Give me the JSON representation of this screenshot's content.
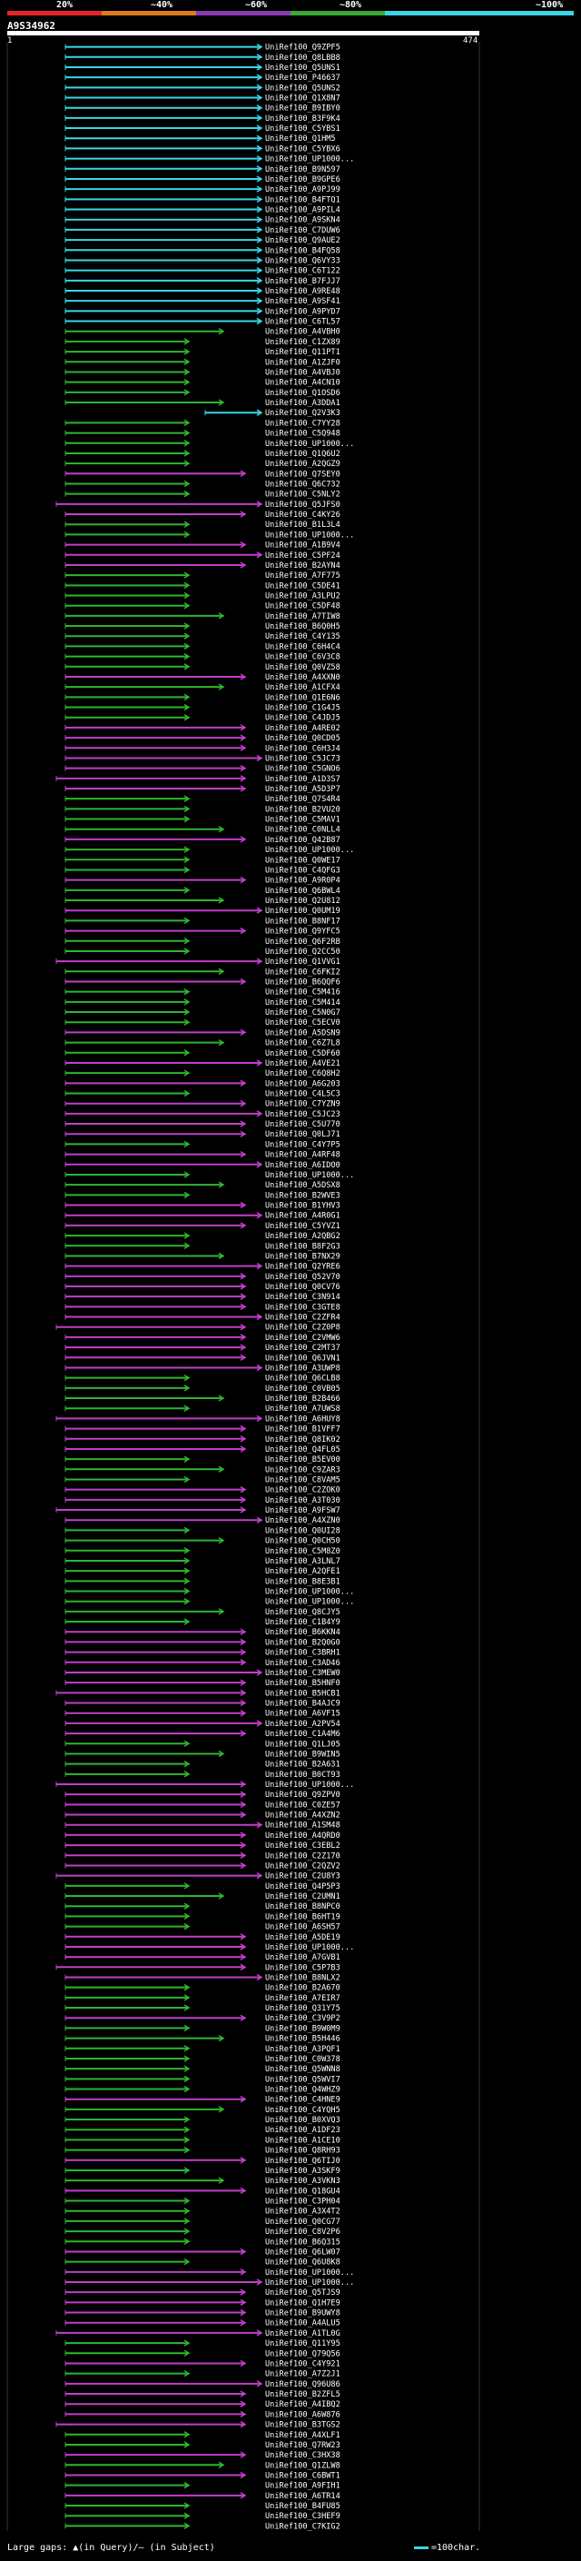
{
  "scale": {
    "labels": [
      "20%",
      "~40%",
      "~60%",
      "~80%",
      "~100%"
    ],
    "colors": [
      "#e8222a",
      "#e07a1a",
      "#8a3ab0",
      "#3aa832",
      "#3ad6e6"
    ]
  },
  "query": {
    "id": "A9S34962",
    "start": "1",
    "end": "474"
  },
  "hit_colors": {
    "cyan": "#3ad6e6",
    "green": "#2fb52f",
    "magenta": "#c040c8"
  },
  "hit_label_prefix": "UniRef100_",
  "hits": [
    {
      "id": "Q9ZPF5",
      "c": "cyan"
    },
    {
      "id": "Q8LBB8",
      "c": "cyan"
    },
    {
      "id": "Q5UNS1",
      "c": "cyan"
    },
    {
      "id": "P46637",
      "c": "cyan"
    },
    {
      "id": "Q5UNS2",
      "c": "cyan"
    },
    {
      "id": "Q1X8N7",
      "c": "cyan"
    },
    {
      "id": "B9IBY0",
      "c": "cyan"
    },
    {
      "id": "B3F9K4",
      "c": "cyan"
    },
    {
      "id": "C5YBS1",
      "c": "cyan"
    },
    {
      "id": "Q1HM5",
      "c": "cyan"
    },
    {
      "id": "C5YBX6",
      "c": "cyan"
    },
    {
      "id": "UP1000...",
      "c": "cyan"
    },
    {
      "id": "B9N597",
      "c": "cyan"
    },
    {
      "id": "B9GPE6",
      "c": "cyan"
    },
    {
      "id": "A9PJ99",
      "c": "cyan"
    },
    {
      "id": "B4FTQ1",
      "c": "cyan"
    },
    {
      "id": "A9PIL4",
      "c": "cyan"
    },
    {
      "id": "A9SKN4",
      "c": "cyan"
    },
    {
      "id": "C7DUW6",
      "c": "cyan"
    },
    {
      "id": "Q9AUE2",
      "c": "cyan"
    },
    {
      "id": "B4FQ58",
      "c": "cyan"
    },
    {
      "id": "Q6VY33",
      "c": "cyan"
    },
    {
      "id": "C6T122",
      "c": "cyan"
    },
    {
      "id": "B7FJJ7",
      "c": "cyan"
    },
    {
      "id": "A9RE48",
      "c": "cyan"
    },
    {
      "id": "A9SF41",
      "c": "cyan"
    },
    {
      "id": "A9PYD7",
      "c": "cyan"
    },
    {
      "id": "C6TL57",
      "c": "cyan"
    },
    {
      "id": "A4VBH0",
      "c": "green"
    },
    {
      "id": "C1ZX89",
      "c": "green"
    },
    {
      "id": "Q11PT1",
      "c": "green"
    },
    {
      "id": "A1ZJF0",
      "c": "green"
    },
    {
      "id": "A4VBJ0",
      "c": "green"
    },
    {
      "id": "A4CN10",
      "c": "green"
    },
    {
      "id": "Q1OSD6",
      "c": "green"
    },
    {
      "id": "A3DDA1",
      "c": "green"
    },
    {
      "id": "Q2V3K3",
      "c": "cyan"
    },
    {
      "id": "C7YY28",
      "c": "green"
    },
    {
      "id": "C5Q948",
      "c": "green"
    },
    {
      "id": "UP1000...",
      "c": "green"
    },
    {
      "id": "Q1Q6U2",
      "c": "green"
    },
    {
      "id": "A2QGZ9",
      "c": "green"
    },
    {
      "id": "Q7SEY0",
      "c": "magenta"
    },
    {
      "id": "Q6C732",
      "c": "green"
    },
    {
      "id": "C5NLY2",
      "c": "green"
    },
    {
      "id": "Q5JFS0",
      "c": "magenta"
    },
    {
      "id": "C4KY26",
      "c": "magenta"
    },
    {
      "id": "B1L3L4",
      "c": "green"
    },
    {
      "id": "UP1000...",
      "c": "green"
    },
    {
      "id": "A1B9V4",
      "c": "magenta"
    },
    {
      "id": "C5PF24",
      "c": "magenta"
    },
    {
      "id": "B2AYN4",
      "c": "magenta"
    },
    {
      "id": "A7F775",
      "c": "green"
    },
    {
      "id": "C5DE41",
      "c": "green"
    },
    {
      "id": "A3LPU2",
      "c": "green"
    },
    {
      "id": "C5DF48",
      "c": "green"
    },
    {
      "id": "A7TIW8",
      "c": "green"
    },
    {
      "id": "B6Q0H5",
      "c": "green"
    },
    {
      "id": "C4Y135",
      "c": "green"
    },
    {
      "id": "C6H4C4",
      "c": "green"
    },
    {
      "id": "C6V3C8",
      "c": "green"
    },
    {
      "id": "Q0VZ58",
      "c": "green"
    },
    {
      "id": "A4XXN0",
      "c": "magenta"
    },
    {
      "id": "A1CFX4",
      "c": "green"
    },
    {
      "id": "Q1E6N6",
      "c": "green"
    },
    {
      "id": "C1G4J5",
      "c": "green"
    },
    {
      "id": "C4JDJ5",
      "c": "green"
    },
    {
      "id": "A4RE02",
      "c": "magenta"
    },
    {
      "id": "Q0CD05",
      "c": "magenta"
    },
    {
      "id": "C6H3J4",
      "c": "magenta"
    },
    {
      "id": "C5JC73",
      "c": "magenta"
    },
    {
      "id": "C5GNO6",
      "c": "magenta"
    },
    {
      "id": "A1D3S7",
      "c": "magenta"
    },
    {
      "id": "A5D3P7",
      "c": "magenta"
    },
    {
      "id": "Q7S4R4",
      "c": "green"
    },
    {
      "id": "B2VU20",
      "c": "green"
    },
    {
      "id": "C5MAV1",
      "c": "green"
    },
    {
      "id": "C0NLL4",
      "c": "green"
    },
    {
      "id": "Q42B87",
      "c": "magenta"
    },
    {
      "id": "UP1000...",
      "c": "green"
    },
    {
      "id": "Q0WE17",
      "c": "green"
    },
    {
      "id": "C4QFG3",
      "c": "green"
    },
    {
      "id": "A9R0P4",
      "c": "magenta"
    },
    {
      "id": "Q6BWL4",
      "c": "green"
    },
    {
      "id": "Q2U812",
      "c": "green"
    },
    {
      "id": "Q0UM19",
      "c": "magenta"
    },
    {
      "id": "B8NF17",
      "c": "green"
    },
    {
      "id": "Q9YFC5",
      "c": "magenta"
    },
    {
      "id": "Q6F2RB",
      "c": "green"
    },
    {
      "id": "Q2CC50",
      "c": "green"
    },
    {
      "id": "Q1VVG1",
      "c": "magenta"
    },
    {
      "id": "C6FKI2",
      "c": "green"
    },
    {
      "id": "B6QQF6",
      "c": "magenta"
    },
    {
      "id": "C5M416",
      "c": "green"
    },
    {
      "id": "C5M414",
      "c": "green"
    },
    {
      "id": "C5N0G7",
      "c": "green"
    },
    {
      "id": "C5ECV0",
      "c": "green"
    },
    {
      "id": "A5DSN9",
      "c": "magenta"
    },
    {
      "id": "C6Z7L8",
      "c": "green"
    },
    {
      "id": "C5DF60",
      "c": "green"
    },
    {
      "id": "A4VE21",
      "c": "magenta"
    },
    {
      "id": "C6Q8H2",
      "c": "green"
    },
    {
      "id": "A6G203",
      "c": "magenta"
    },
    {
      "id": "C4L5C3",
      "c": "green"
    },
    {
      "id": "C7YZN9",
      "c": "magenta"
    },
    {
      "id": "C5JC23",
      "c": "magenta"
    },
    {
      "id": "C5U770",
      "c": "magenta"
    },
    {
      "id": "Q0LJ71",
      "c": "magenta"
    },
    {
      "id": "C4Y7P5",
      "c": "green"
    },
    {
      "id": "A4RF48",
      "c": "magenta"
    },
    {
      "id": "A6IDO0",
      "c": "magenta"
    },
    {
      "id": "UP1000...",
      "c": "green"
    },
    {
      "id": "A5DSX8",
      "c": "green"
    },
    {
      "id": "B2WVE3",
      "c": "green"
    },
    {
      "id": "B1YHV3",
      "c": "magenta"
    },
    {
      "id": "A4R0G1",
      "c": "magenta"
    },
    {
      "id": "C5YVZ1",
      "c": "magenta"
    },
    {
      "id": "A2QBG2",
      "c": "green"
    },
    {
      "id": "B8F2G3",
      "c": "green"
    },
    {
      "id": "B7NX29",
      "c": "green"
    },
    {
      "id": "Q2YRE6",
      "c": "magenta"
    },
    {
      "id": "Q52V70",
      "c": "magenta"
    },
    {
      "id": "Q0CV76",
      "c": "magenta"
    },
    {
      "id": "C3N914",
      "c": "magenta"
    },
    {
      "id": "C3GTE8",
      "c": "magenta"
    },
    {
      "id": "C2ZFR4",
      "c": "magenta"
    },
    {
      "id": "C2Z0P8",
      "c": "magenta"
    },
    {
      "id": "C2VMW6",
      "c": "magenta"
    },
    {
      "id": "C2MT37",
      "c": "magenta"
    },
    {
      "id": "Q6JVN1",
      "c": "magenta"
    },
    {
      "id": "A3UWP8",
      "c": "magenta"
    },
    {
      "id": "Q6CLB8",
      "c": "green"
    },
    {
      "id": "C0VB05",
      "c": "green"
    },
    {
      "id": "B2B466",
      "c": "green"
    },
    {
      "id": "A7UWS8",
      "c": "green"
    },
    {
      "id": "A6HUY8",
      "c": "magenta"
    },
    {
      "id": "B1VFF7",
      "c": "magenta"
    },
    {
      "id": "Q8IK02",
      "c": "magenta"
    },
    {
      "id": "Q4FL05",
      "c": "magenta"
    },
    {
      "id": "B5EV00",
      "c": "green"
    },
    {
      "id": "C9ZAR3",
      "c": "green"
    },
    {
      "id": "C8VAM5",
      "c": "green"
    },
    {
      "id": "C2ZOK0",
      "c": "magenta"
    },
    {
      "id": "A3T030",
      "c": "magenta"
    },
    {
      "id": "A9FSW7",
      "c": "magenta"
    },
    {
      "id": "A4XZN0",
      "c": "magenta"
    },
    {
      "id": "Q0UI28",
      "c": "green"
    },
    {
      "id": "Q0CH50",
      "c": "green"
    },
    {
      "id": "C5M8Z0",
      "c": "green"
    },
    {
      "id": "A3LNL7",
      "c": "green"
    },
    {
      "id": "A2QFE1",
      "c": "green"
    },
    {
      "id": "B8E3B1",
      "c": "green"
    },
    {
      "id": "UP1000...",
      "c": "green"
    },
    {
      "id": "UP1000...",
      "c": "green"
    },
    {
      "id": "Q8CJY5",
      "c": "green"
    },
    {
      "id": "C1B4Y9",
      "c": "green"
    },
    {
      "id": "B6KKN4",
      "c": "magenta"
    },
    {
      "id": "B2Q0G0",
      "c": "magenta"
    },
    {
      "id": "C3BRH1",
      "c": "magenta"
    },
    {
      "id": "C3AD46",
      "c": "magenta"
    },
    {
      "id": "C3MEW0",
      "c": "magenta"
    },
    {
      "id": "B5HNF0",
      "c": "magenta"
    },
    {
      "id": "B5HCB1",
      "c": "magenta"
    },
    {
      "id": "B4AJC9",
      "c": "magenta"
    },
    {
      "id": "A6VF15",
      "c": "magenta"
    },
    {
      "id": "A2PV54",
      "c": "magenta"
    },
    {
      "id": "C1A4M6",
      "c": "magenta"
    },
    {
      "id": "Q1LJ05",
      "c": "green"
    },
    {
      "id": "B9WIN5",
      "c": "green"
    },
    {
      "id": "B2A631",
      "c": "green"
    },
    {
      "id": "B0CT93",
      "c": "green"
    },
    {
      "id": "UP1000...",
      "c": "magenta"
    },
    {
      "id": "Q9ZPV0",
      "c": "magenta"
    },
    {
      "id": "C0ZE57",
      "c": "magenta"
    },
    {
      "id": "A4XZN2",
      "c": "magenta"
    },
    {
      "id": "A1SM48",
      "c": "magenta"
    },
    {
      "id": "A4QRD0",
      "c": "magenta"
    },
    {
      "id": "C3EBL2",
      "c": "magenta"
    },
    {
      "id": "C2Z170",
      "c": "magenta"
    },
    {
      "id": "C2QZV2",
      "c": "magenta"
    },
    {
      "id": "C2U8Y3",
      "c": "magenta"
    },
    {
      "id": "Q4P5P3",
      "c": "green"
    },
    {
      "id": "C2UMN1",
      "c": "green"
    },
    {
      "id": "B8NPC0",
      "c": "green"
    },
    {
      "id": "B6HT19",
      "c": "green"
    },
    {
      "id": "A6SH57",
      "c": "green"
    },
    {
      "id": "A5DE19",
      "c": "magenta"
    },
    {
      "id": "UP1000...",
      "c": "magenta"
    },
    {
      "id": "A7GVB1",
      "c": "magenta"
    },
    {
      "id": "C5P7B3",
      "c": "magenta"
    },
    {
      "id": "B8NLX2",
      "c": "magenta"
    },
    {
      "id": "B2A670",
      "c": "green"
    },
    {
      "id": "A7EIR7",
      "c": "green"
    },
    {
      "id": "Q31Y75",
      "c": "green"
    },
    {
      "id": "C3V9P2",
      "c": "magenta"
    },
    {
      "id": "B9W0M9",
      "c": "green"
    },
    {
      "id": "B5H446",
      "c": "green"
    },
    {
      "id": "A3PQF1",
      "c": "green"
    },
    {
      "id": "C0W378",
      "c": "green"
    },
    {
      "id": "Q5WNN8",
      "c": "green"
    },
    {
      "id": "Q5WVI7",
      "c": "green"
    },
    {
      "id": "Q4WHZ9",
      "c": "green"
    },
    {
      "id": "C4HNE9",
      "c": "magenta"
    },
    {
      "id": "C4YQH5",
      "c": "green"
    },
    {
      "id": "B0XVQ3",
      "c": "green"
    },
    {
      "id": "A1DF23",
      "c": "green"
    },
    {
      "id": "A1CE10",
      "c": "green"
    },
    {
      "id": "Q8RH93",
      "c": "green"
    },
    {
      "id": "Q6TIJ0",
      "c": "magenta"
    },
    {
      "id": "A3SKF9",
      "c": "green"
    },
    {
      "id": "A3VKN3",
      "c": "green"
    },
    {
      "id": "Q18GU4",
      "c": "magenta"
    },
    {
      "id": "C3PH04",
      "c": "green"
    },
    {
      "id": "A3X4T2",
      "c": "green"
    },
    {
      "id": "Q0CG77",
      "c": "green"
    },
    {
      "id": "C8V2P6",
      "c": "green"
    },
    {
      "id": "B6Q315",
      "c": "green"
    },
    {
      "id": "Q6LW07",
      "c": "magenta"
    },
    {
      "id": "Q6U8K8",
      "c": "green"
    },
    {
      "id": "UP1000...",
      "c": "magenta"
    },
    {
      "id": "UP1000...",
      "c": "magenta"
    },
    {
      "id": "Q5TJS9",
      "c": "magenta"
    },
    {
      "id": "Q1H7E9",
      "c": "magenta"
    },
    {
      "id": "B9UWY8",
      "c": "magenta"
    },
    {
      "id": "A4ALU5",
      "c": "magenta"
    },
    {
      "id": "A1TL0G",
      "c": "magenta"
    },
    {
      "id": "Q11Y95",
      "c": "green"
    },
    {
      "id": "Q79Q56",
      "c": "green"
    },
    {
      "id": "C4Y921",
      "c": "magenta"
    },
    {
      "id": "A7Z2J1",
      "c": "green"
    },
    {
      "id": "Q96U86",
      "c": "magenta"
    },
    {
      "id": "B2ZFL5",
      "c": "magenta"
    },
    {
      "id": "A4IBQ2",
      "c": "magenta"
    },
    {
      "id": "A6W876",
      "c": "magenta"
    },
    {
      "id": "B3TGS2",
      "c": "magenta"
    },
    {
      "id": "A4XLF1",
      "c": "green"
    },
    {
      "id": "Q7RW23",
      "c": "green"
    },
    {
      "id": "C3HX38",
      "c": "magenta"
    },
    {
      "id": "Q1ZLW8",
      "c": "green"
    },
    {
      "id": "C6BWT1",
      "c": "magenta"
    },
    {
      "id": "A9FIH1",
      "c": "green"
    },
    {
      "id": "A6TR14",
      "c": "magenta"
    },
    {
      "id": "B4FU85",
      "c": "green"
    },
    {
      "id": "C3HEF9",
      "c": "green"
    },
    {
      "id": "C7KIG2",
      "c": "green"
    }
  ],
  "legend": {
    "gaps_text": "Large gaps: ▲(in Query)/— (in Subject)",
    "scale_text": "=100char."
  }
}
